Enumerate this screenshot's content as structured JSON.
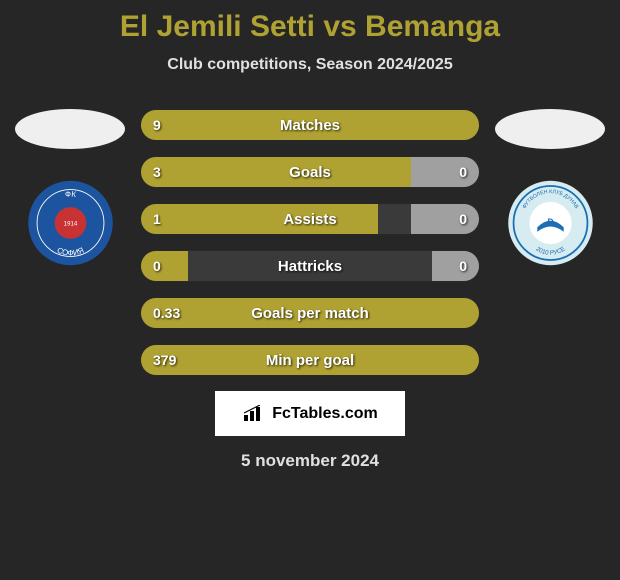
{
  "title_color": "#b0a232",
  "player1_name": "El Jemili Setti",
  "player2_name": "Bemanga",
  "vs_text": "vs",
  "subtitle": "Club competitions, Season 2024/2025",
  "brand": "FcTables.com",
  "date": "5 november 2024",
  "avatar1_color": "#efefef",
  "avatar2_color": "#efefef",
  "club1": {
    "bg_color": "#1d54a0",
    "accent": "#c83232",
    "text": "ФК СОФИЯ 1914"
  },
  "club2": {
    "bg_color": "#d6ecf0",
    "accent": "#1a6fb4",
    "text": "ФУТБОЛЕН КЛУБ ДУНАВ 2010 РУСЕ"
  },
  "bar_bg_color": "#3a3a3a",
  "left_fill_color": "#b0a232",
  "right_fill_color": "#a0a0a0",
  "stats": [
    {
      "label": "Matches",
      "left_value": "9",
      "right_value": "",
      "left_pct": 100,
      "right_pct": 0
    },
    {
      "label": "Goals",
      "left_value": "3",
      "right_value": "0",
      "left_pct": 80,
      "right_pct": 20
    },
    {
      "label": "Assists",
      "left_value": "1",
      "right_value": "0",
      "left_pct": 70,
      "right_pct": 20
    },
    {
      "label": "Hattricks",
      "left_value": "0",
      "right_value": "0",
      "left_pct": 14,
      "right_pct": 14
    },
    {
      "label": "Goals per match",
      "left_value": "0.33",
      "right_value": "",
      "left_pct": 100,
      "right_pct": 0
    },
    {
      "label": "Min per goal",
      "left_value": "379",
      "right_value": "",
      "left_pct": 100,
      "right_pct": 0
    }
  ]
}
